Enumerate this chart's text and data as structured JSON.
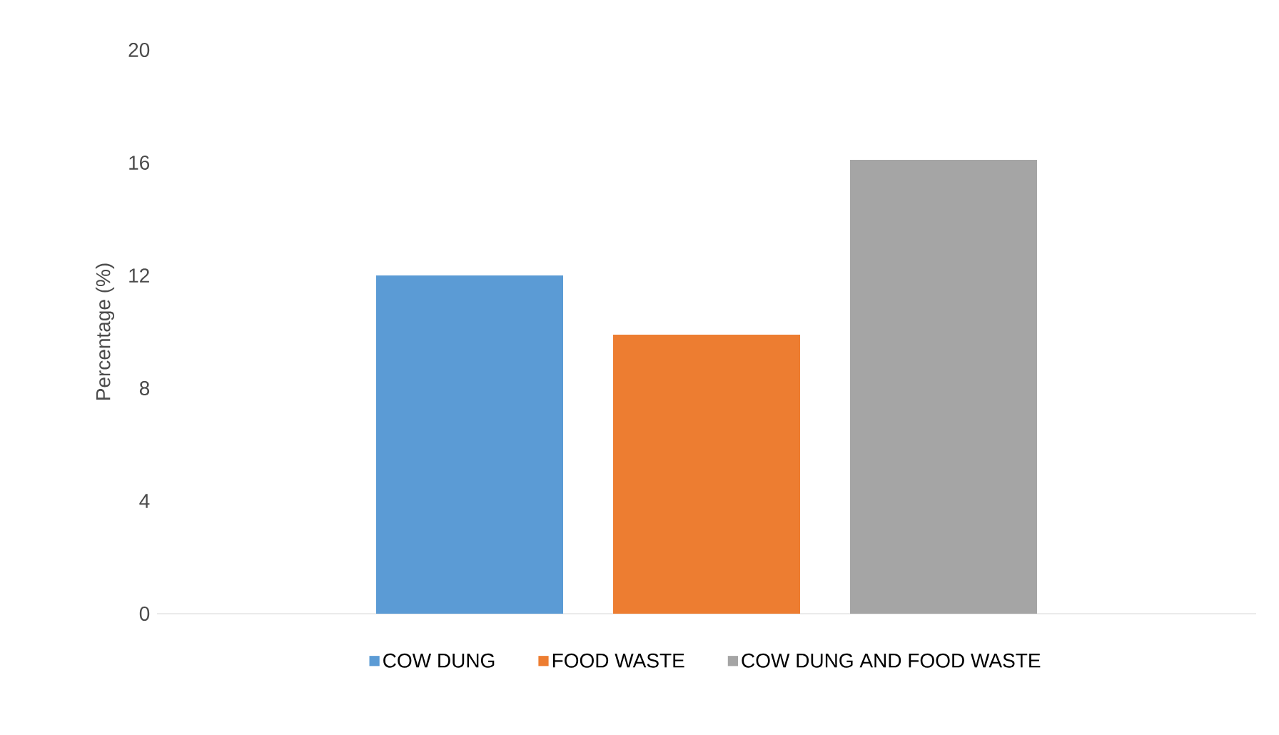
{
  "chart_data": {
    "type": "bar",
    "ylabel": "Percentage (%)",
    "categories": [
      null
    ],
    "series": [
      {
        "name": "COW DUNG",
        "color": "#5b9bd5",
        "values": [
          12.0
        ]
      },
      {
        "name": "FOOD WASTE",
        "color": "#ed7d31",
        "values": [
          9.9
        ]
      },
      {
        "name": "COW DUNG AND FOOD WASTE",
        "color": "#a5a5a5",
        "values": [
          16.1
        ]
      }
    ],
    "ylim": [
      0,
      20
    ],
    "yticks": [
      0,
      4,
      8,
      12,
      16,
      20
    ],
    "legend": "bottom"
  }
}
